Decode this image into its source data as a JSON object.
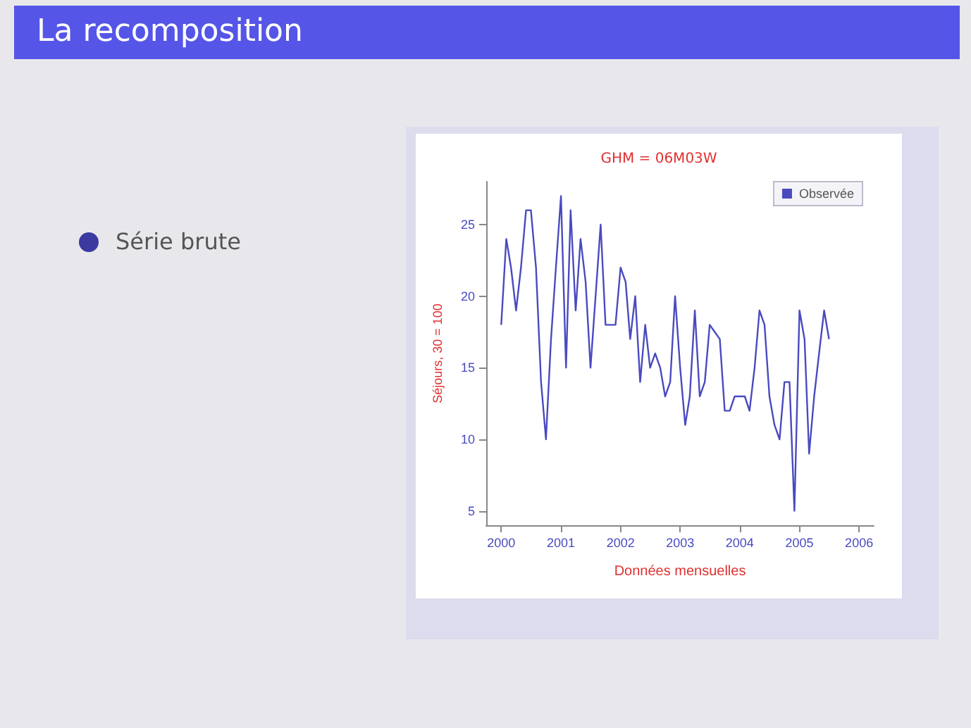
{
  "chart_data": {
    "type": "line",
    "title": "La recomposition",
    "subtitle": "GHM = 06M03W",
    "xlabel": "Données mensuelles",
    "ylabel": "Séjours, 30 = 100",
    "annotations": [
      "Série brute"
    ],
    "x": [
      "2000-01",
      "2000-02",
      "2000-03",
      "2000-04",
      "2000-05",
      "2000-06",
      "2000-07",
      "2000-08",
      "2000-09",
      "2000-10",
      "2000-11",
      "2000-12",
      "2001-01",
      "2001-02",
      "2001-03",
      "2001-04",
      "2001-05",
      "2001-06",
      "2001-07",
      "2001-08",
      "2001-09",
      "2001-10",
      "2001-11",
      "2001-12",
      "2002-01",
      "2002-02",
      "2002-03",
      "2002-04",
      "2002-05",
      "2002-06",
      "2002-07",
      "2002-08",
      "2002-09",
      "2002-10",
      "2002-11",
      "2002-12",
      "2003-01",
      "2003-02",
      "2003-03",
      "2003-04",
      "2003-05",
      "2003-06",
      "2003-07",
      "2003-08",
      "2003-09",
      "2003-10",
      "2003-11",
      "2003-12",
      "2004-01",
      "2004-02",
      "2004-03",
      "2004-04",
      "2004-05",
      "2004-06",
      "2004-07",
      "2004-08",
      "2004-09",
      "2004-10",
      "2004-11",
      "2004-12",
      "2005-01",
      "2005-02",
      "2005-03",
      "2005-04",
      "2005-05",
      "2005-06",
      "2005-07"
    ],
    "series": [
      {
        "name": "Observée",
        "color": "#4a4ac0",
        "values": [
          18,
          24,
          22,
          19,
          22,
          26,
          26,
          22,
          14,
          10,
          17,
          22,
          27,
          15,
          26,
          19,
          24,
          21,
          15,
          20,
          25,
          18,
          18,
          18,
          22,
          21,
          17,
          20,
          14,
          18,
          15,
          16,
          15,
          13,
          14,
          20,
          15,
          11,
          13,
          19,
          13,
          14,
          18,
          17.5,
          17,
          12,
          12,
          13,
          13,
          13,
          12,
          15,
          19,
          18,
          13,
          11,
          10,
          14,
          14,
          5,
          19,
          17,
          9,
          13,
          16,
          19,
          17
        ]
      }
    ],
    "xlim": [
      "1999-10",
      "2006-04"
    ],
    "xticks": [
      "2000",
      "2001",
      "2002",
      "2003",
      "2004",
      "2005",
      "2006"
    ],
    "ylim": [
      4,
      28
    ],
    "yticks": [
      5,
      10,
      15,
      20,
      25
    ],
    "grid": false,
    "legend": "top right",
    "marker": "none",
    "line_style": "solid"
  }
}
